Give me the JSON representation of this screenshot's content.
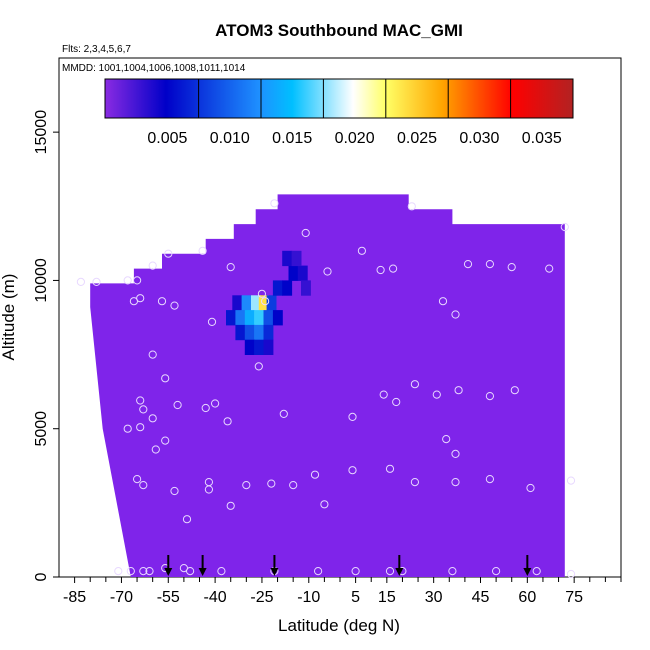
{
  "chart_data": {
    "type": "heatmap",
    "title": "ATOM3 Southbound MAC_GMI",
    "subtitle_flights": "Flts: 2,3,4,5,6,7",
    "subtitle_dates": "MMDD: 1001,1004,1006,1008,1011,1014",
    "xlabel": "Latitude (deg N)",
    "ylabel": "Altitude (m)",
    "xlim": [
      -90,
      90
    ],
    "ylim": [
      0,
      17500
    ],
    "x_ticks": [
      -85,
      -70,
      -55,
      -40,
      -25,
      -10,
      5,
      15,
      30,
      45,
      60,
      75
    ],
    "x_tick_labels": [
      "-85",
      "-70",
      "-55",
      "-40",
      "-25",
      "-10",
      "5",
      "15",
      "30",
      "45",
      "60",
      "75"
    ],
    "x_minor_ticks": [
      -80,
      -75,
      -65,
      -60,
      -50,
      -45,
      -35,
      -30,
      -20,
      -15,
      -5,
      0,
      10,
      20,
      25,
      35,
      40,
      50,
      55,
      65,
      70,
      80,
      85,
      90
    ],
    "y_ticks": [
      0,
      5000,
      10000,
      15000
    ],
    "y_tick_labels": [
      "0",
      "5000",
      "10000",
      "15000"
    ],
    "colorbar": {
      "min": 0,
      "max": 0.0375,
      "ticks": [
        0.005,
        0.01,
        0.015,
        0.02,
        0.025,
        0.03,
        0.035
      ],
      "tick_labels": [
        "0.005",
        "0.010",
        "0.015",
        "0.020",
        "0.025",
        "0.030",
        "0.035"
      ],
      "dividers": [
        0.0075,
        0.0125,
        0.0175,
        0.0225,
        0.0275,
        0.0325
      ],
      "color_stops": [
        "#8a2be2",
        "#0000c8",
        "#1e90ff",
        "#00bfff",
        "#ffffff",
        "#ffff66",
        "#ffa500",
        "#ff0000",
        "#b22222"
      ]
    },
    "background_field_color": "#7f24ea",
    "domain_outline": [
      [
        -80,
        9900
      ],
      [
        -66,
        9900
      ],
      [
        -66,
        10400
      ],
      [
        -57,
        10400
      ],
      [
        -57,
        10900
      ],
      [
        -43,
        10900
      ],
      [
        -43,
        11400
      ],
      [
        -34,
        11400
      ],
      [
        -34,
        11900
      ],
      [
        -27,
        11900
      ],
      [
        -27,
        12400
      ],
      [
        -20,
        12400
      ],
      [
        -20,
        12900
      ],
      [
        22,
        12900
      ],
      [
        22,
        12400
      ],
      [
        36,
        12400
      ],
      [
        36,
        11900
      ],
      [
        72,
        11900
      ],
      [
        72,
        0
      ],
      [
        -67,
        0
      ],
      [
        -76,
        5000
      ],
      [
        -80,
        9100
      ]
    ],
    "hotspot_cells": [
      {
        "lat": -33,
        "alt": 9250,
        "value": 0.004
      },
      {
        "lat": -30,
        "alt": 9250,
        "value": 0.012
      },
      {
        "lat": -27,
        "alt": 9250,
        "value": 0.018
      },
      {
        "lat": -24.5,
        "alt": 9250,
        "value": 0.024
      },
      {
        "lat": -22,
        "alt": 9250,
        "value": 0.008
      },
      {
        "lat": -35,
        "alt": 8750,
        "value": 0.006
      },
      {
        "lat": -32,
        "alt": 8750,
        "value": 0.011
      },
      {
        "lat": -29,
        "alt": 8750,
        "value": 0.014
      },
      {
        "lat": -26,
        "alt": 8750,
        "value": 0.016
      },
      {
        "lat": -23,
        "alt": 8750,
        "value": 0.009
      },
      {
        "lat": -20,
        "alt": 8750,
        "value": 0.005
      },
      {
        "lat": -32,
        "alt": 8250,
        "value": 0.006
      },
      {
        "lat": -29,
        "alt": 8250,
        "value": 0.009
      },
      {
        "lat": -26,
        "alt": 8250,
        "value": 0.011
      },
      {
        "lat": -23,
        "alt": 8250,
        "value": 0.007
      },
      {
        "lat": -29,
        "alt": 7750,
        "value": 0.005
      },
      {
        "lat": -26,
        "alt": 7750,
        "value": 0.006
      },
      {
        "lat": -23,
        "alt": 7750,
        "value": 0.004
      },
      {
        "lat": -20,
        "alt": 9750,
        "value": 0.006
      },
      {
        "lat": -17,
        "alt": 9750,
        "value": 0.005
      },
      {
        "lat": -15,
        "alt": 10250,
        "value": 0.005
      },
      {
        "lat": -12,
        "alt": 10250,
        "value": 0.004
      },
      {
        "lat": -17,
        "alt": 10750,
        "value": 0.004
      },
      {
        "lat": -14,
        "alt": 10750,
        "value": 0.003
      },
      {
        "lat": -11,
        "alt": 9750,
        "value": 0.003
      }
    ],
    "sample_points": [
      [
        -83,
        9950
      ],
      [
        -78,
        9950
      ],
      [
        -68,
        10000
      ],
      [
        -66,
        9300
      ],
      [
        -65,
        10000
      ],
      [
        -64,
        9400
      ],
      [
        -60,
        10500
      ],
      [
        -57,
        9300
      ],
      [
        -55,
        10900
      ],
      [
        -53,
        9150
      ],
      [
        -44,
        11000
      ],
      [
        -41,
        8600
      ],
      [
        -35,
        10450
      ],
      [
        -25,
        9550
      ],
      [
        -24,
        9300
      ],
      [
        -21,
        12600
      ],
      [
        -11,
        11600
      ],
      [
        -4,
        10300
      ],
      [
        7,
        11000
      ],
      [
        13,
        10350
      ],
      [
        17,
        10400
      ],
      [
        23,
        12500
      ],
      [
        33,
        9300
      ],
      [
        37,
        8850
      ],
      [
        41,
        10550
      ],
      [
        48,
        10550
      ],
      [
        55,
        10450
      ],
      [
        67,
        10400
      ],
      [
        72,
        11800
      ],
      [
        -60,
        7500
      ],
      [
        -56,
        6700
      ],
      [
        -64,
        5950
      ],
      [
        -63,
        5650
      ],
      [
        -60,
        5350
      ],
      [
        -52,
        5800
      ],
      [
        -43,
        5700
      ],
      [
        -40,
        5850
      ],
      [
        -36,
        5250
      ],
      [
        -26,
        7100
      ],
      [
        -18,
        5500
      ],
      [
        4,
        5400
      ],
      [
        14,
        6150
      ],
      [
        18,
        5900
      ],
      [
        24,
        6500
      ],
      [
        31,
        6150
      ],
      [
        38,
        6300
      ],
      [
        48,
        6100
      ],
      [
        56,
        6300
      ],
      [
        34,
        4650
      ],
      [
        37,
        4150
      ],
      [
        -68,
        5000
      ],
      [
        -64,
        5050
      ],
      [
        -59,
        4300
      ],
      [
        -56,
        4600
      ],
      [
        -65,
        3300
      ],
      [
        -63,
        3100
      ],
      [
        -53,
        2900
      ],
      [
        -42,
        3200
      ],
      [
        -42,
        2950
      ],
      [
        -35,
        2400
      ],
      [
        -30,
        3100
      ],
      [
        -22,
        3150
      ],
      [
        -15,
        3100
      ],
      [
        -8,
        3450
      ],
      [
        4,
        3600
      ],
      [
        16,
        3650
      ],
      [
        24,
        3200
      ],
      [
        37,
        3200
      ],
      [
        48,
        3300
      ],
      [
        61,
        3000
      ],
      [
        74,
        3250
      ],
      [
        -49,
        1950
      ],
      [
        -5,
        2450
      ],
      [
        -71,
        200
      ],
      [
        -67,
        200
      ],
      [
        -63,
        200
      ],
      [
        -61,
        200
      ],
      [
        -56,
        300
      ],
      [
        -50,
        300
      ],
      [
        -48,
        200
      ],
      [
        -38,
        200
      ],
      [
        -21,
        200
      ],
      [
        -7,
        200
      ],
      [
        5,
        200
      ],
      [
        16,
        200
      ],
      [
        20,
        200
      ],
      [
        36,
        200
      ],
      [
        50,
        200
      ],
      [
        63,
        200
      ],
      [
        74,
        100
      ]
    ],
    "flight_arrows": [
      -55,
      -44,
      -21,
      19,
      60
    ]
  }
}
